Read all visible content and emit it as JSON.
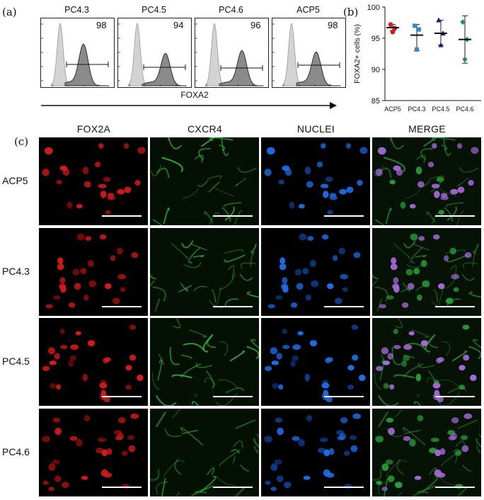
{
  "panel_a": {
    "letter": "(a)",
    "axis_label": "FOXA2",
    "histograms": [
      {
        "title": "PC4.3",
        "percent": "98"
      },
      {
        "title": "PC4.5",
        "percent": "94"
      },
      {
        "title": "PC4.6",
        "percent": "96"
      },
      {
        "title": "ACP5",
        "percent": "98"
      }
    ]
  },
  "panel_b": {
    "letter": "(b)"
  },
  "panel_c": {
    "letter": "(c)",
    "columns": [
      "FOX2A",
      "CXCR4",
      "NUCLEI",
      "MERGE"
    ],
    "rows": [
      "ACP5",
      "PC4.3",
      "PC4.5",
      "PC4.6"
    ]
  },
  "chart_data": {
    "type": "scatter",
    "categories": [
      "ACP5",
      "PC4.3",
      "PC4.5",
      "PC4.6"
    ],
    "ylabel": "FOXA2+ cells (%)",
    "ylim": [
      85,
      100
    ],
    "yticks": [
      85,
      90,
      95,
      100
    ],
    "series": [
      {
        "category": "ACP5",
        "points": [
          97.2,
          96.6,
          96.0
        ],
        "mean": 96.7,
        "err": [
          96.2,
          97.2
        ],
        "color": "#d42020"
      },
      {
        "category": "PC4.3",
        "points": [
          97.0,
          96.4,
          93.2
        ],
        "mean": 95.5,
        "err": [
          93.0,
          97.2
        ],
        "color": "#3a86c8"
      },
      {
        "category": "PC4.5",
        "points": [
          97.9,
          95.8,
          93.9
        ],
        "mean": 95.8,
        "err": [
          93.9,
          97.9
        ],
        "color": "#1a1a6e"
      },
      {
        "category": "PC4.6",
        "points": [
          97.6,
          94.8,
          91.6
        ],
        "mean": 94.8,
        "err": [
          91.0,
          98.6
        ],
        "color": "#1e8a6e"
      }
    ]
  }
}
